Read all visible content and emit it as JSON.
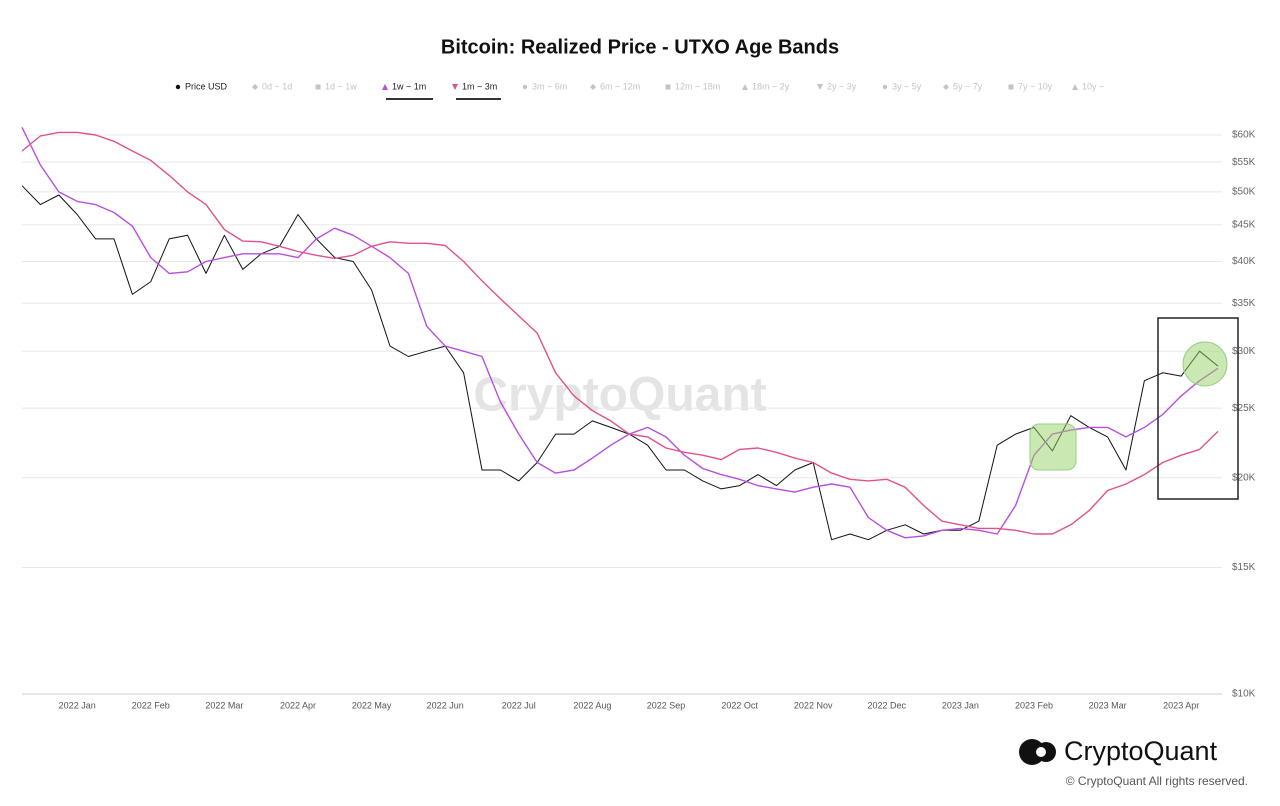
{
  "chart_data": {
    "type": "line",
    "title": "Bitcoin: Realized Price - UTXO Age Bands",
    "watermark": "CryptoQuant",
    "categories": [
      null,
      null,
      null,
      "2022 Jan",
      null,
      null,
      null,
      "2022 Feb",
      null,
      null,
      null,
      "2022 Mar",
      null,
      null,
      null,
      "2022 Apr",
      null,
      null,
      null,
      "2022 May",
      null,
      null,
      null,
      "2022 Jun",
      null,
      null,
      null,
      "2022 Jul",
      null,
      null,
      null,
      "2022 Aug",
      null,
      null,
      null,
      "2022 Sep",
      null,
      null,
      null,
      "2022 Oct",
      null,
      null,
      null,
      "2022 Nov",
      null,
      null,
      null,
      "2022 Dec",
      null,
      null,
      null,
      "2023 Jan",
      null,
      null,
      null,
      "2023 Feb",
      null,
      null,
      null,
      "2023 Mar",
      null,
      null,
      null,
      "2023 Apr",
      null,
      null
    ],
    "series": [
      {
        "name": "Price USD",
        "color": "#111111",
        "marker": "circle",
        "values": [
          51000,
          48000,
          49500,
          46500,
          43000,
          43000,
          36000,
          37500,
          43000,
          43500,
          38500,
          43500,
          39000,
          41000,
          42000,
          46500,
          43000,
          40500,
          40000,
          36500,
          30500,
          29500,
          30000,
          30500,
          28000,
          20500,
          20500,
          19800,
          21000,
          23000,
          23000,
          24000,
          23500,
          23000,
          22200,
          20500,
          20500,
          19800,
          19300,
          19500,
          20200,
          19500,
          20500,
          21000,
          16400,
          16700,
          16400,
          16900,
          17200,
          16700,
          16900,
          16900,
          17400,
          22200,
          23000,
          23500,
          21800,
          24400,
          23500,
          22800,
          20500,
          27300,
          28000,
          27700,
          30000,
          28600
        ]
      },
      {
        "name": "1w ~ 1m",
        "color": "#b84fe0",
        "marker": "triangle-up",
        "values": [
          61500,
          54500,
          50000,
          48500,
          48000,
          46800,
          44800,
          40500,
          38500,
          38700,
          40000,
          40500,
          41000,
          41000,
          41000,
          40500,
          43000,
          44500,
          43500,
          42000,
          40500,
          38500,
          32500,
          30500,
          30000,
          29500,
          25500,
          23000,
          21000,
          20300,
          20500,
          21300,
          22200,
          23000,
          23500,
          22800,
          21500,
          20600,
          20200,
          19900,
          19500,
          19300,
          19100,
          19400,
          19600,
          19400,
          17600,
          16900,
          16500,
          16600,
          16900,
          17000,
          16900,
          16700,
          18300,
          21500,
          23000,
          23300,
          23500,
          23500,
          22800,
          23500,
          24500,
          26000,
          27300,
          28400
        ]
      },
      {
        "name": "1m ~ 3m",
        "color": "#e0528c",
        "marker": "triangle-down",
        "values": [
          57000,
          59800,
          60500,
          60500,
          60000,
          58800,
          57000,
          55300,
          52700,
          50000,
          48000,
          44300,
          42700,
          42600,
          42000,
          41300,
          40800,
          40400,
          40800,
          42000,
          42600,
          42400,
          42400,
          42100,
          40000,
          37600,
          35500,
          33600,
          31800,
          28000,
          26000,
          24800,
          24000,
          23000,
          22800,
          22000,
          21700,
          21500,
          21200,
          21900,
          22000,
          21700,
          21300,
          21000,
          20300,
          19900,
          19800,
          19900,
          19400,
          18300,
          17400,
          17200,
          17000,
          17000,
          16900,
          16700,
          16700,
          17200,
          18000,
          19200,
          19600,
          20200,
          21000,
          21500,
          21900,
          23200
        ]
      }
    ],
    "inactive_series": [
      {
        "name": "0d ~ 1d",
        "marker": "diamond"
      },
      {
        "name": "1d ~ 1w",
        "marker": "square"
      },
      {
        "name": "3m ~ 6m",
        "marker": "circle"
      },
      {
        "name": "6m ~ 12m",
        "marker": "diamond"
      },
      {
        "name": "12m ~ 18m",
        "marker": "square"
      },
      {
        "name": "18m ~ 2y",
        "marker": "triangle-up"
      },
      {
        "name": "2y ~ 3y",
        "marker": "triangle-down"
      },
      {
        "name": "3y ~ 5y",
        "marker": "circle"
      },
      {
        "name": "5y ~ 7y",
        "marker": "diamond"
      },
      {
        "name": "7y ~ 10y",
        "marker": "square"
      },
      {
        "name": "10y ~",
        "marker": "triangle-up"
      }
    ],
    "inactive_color": "#c4c4c4",
    "y_scale": "log",
    "ylim": [
      10000,
      65000
    ],
    "yticks": [
      {
        "value": 10000,
        "label": "$10K"
      },
      {
        "value": 15000,
        "label": "$15K"
      },
      {
        "value": 20000,
        "label": "$20K"
      },
      {
        "value": 25000,
        "label": "$25K"
      },
      {
        "value": 30000,
        "label": "$30K"
      },
      {
        "value": 35000,
        "label": "$35K"
      },
      {
        "value": 40000,
        "label": "$40K"
      },
      {
        "value": 45000,
        "label": "$45K"
      },
      {
        "value": 50000,
        "label": "$50K"
      },
      {
        "value": 55000,
        "label": "$55K"
      },
      {
        "value": 60000,
        "label": "$60K"
      }
    ],
    "grid": true
  },
  "branding": {
    "logo": "CryptoQuant",
    "copyright": "© CryptoQuant All rights reserved."
  }
}
